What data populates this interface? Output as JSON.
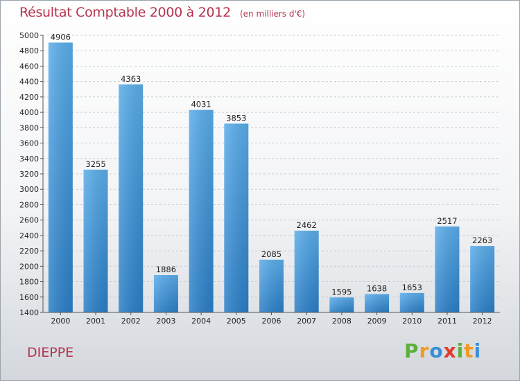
{
  "chart_data": {
    "type": "bar",
    "title": "Résultat Comptable 2000 à 2012",
    "subtitle": "(en milliers d'€)",
    "categories": [
      "2000",
      "2001",
      "2002",
      "2003",
      "2004",
      "2005",
      "2006",
      "2007",
      "2008",
      "2009",
      "2010",
      "2011",
      "2012"
    ],
    "values": [
      4906,
      3255,
      4363,
      1886,
      4031,
      3853,
      2085,
      2462,
      1595,
      1638,
      1653,
      2517,
      2263
    ],
    "xlabel": "",
    "ylabel": "",
    "ylim": [
      1400,
      5000
    ],
    "yticks": [
      1400,
      1600,
      1800,
      2000,
      2200,
      2400,
      2600,
      2800,
      3000,
      3200,
      3400,
      3600,
      3800,
      4000,
      4200,
      4400,
      4600,
      4800,
      5000
    ],
    "grid": true,
    "bar_color": "#3a8fd6",
    "title_color": "#b5334f"
  },
  "footer": {
    "commune": "DIEPPE",
    "logo_letters": [
      "P",
      "r",
      "o",
      "x",
      "i",
      "t",
      "i"
    ],
    "logo_colors": [
      "#5bb03a",
      "#f29a1f",
      "#3a8fd6",
      "#e23a2d",
      "#5bb03a",
      "#f29a1f",
      "#3a8fd6"
    ]
  }
}
